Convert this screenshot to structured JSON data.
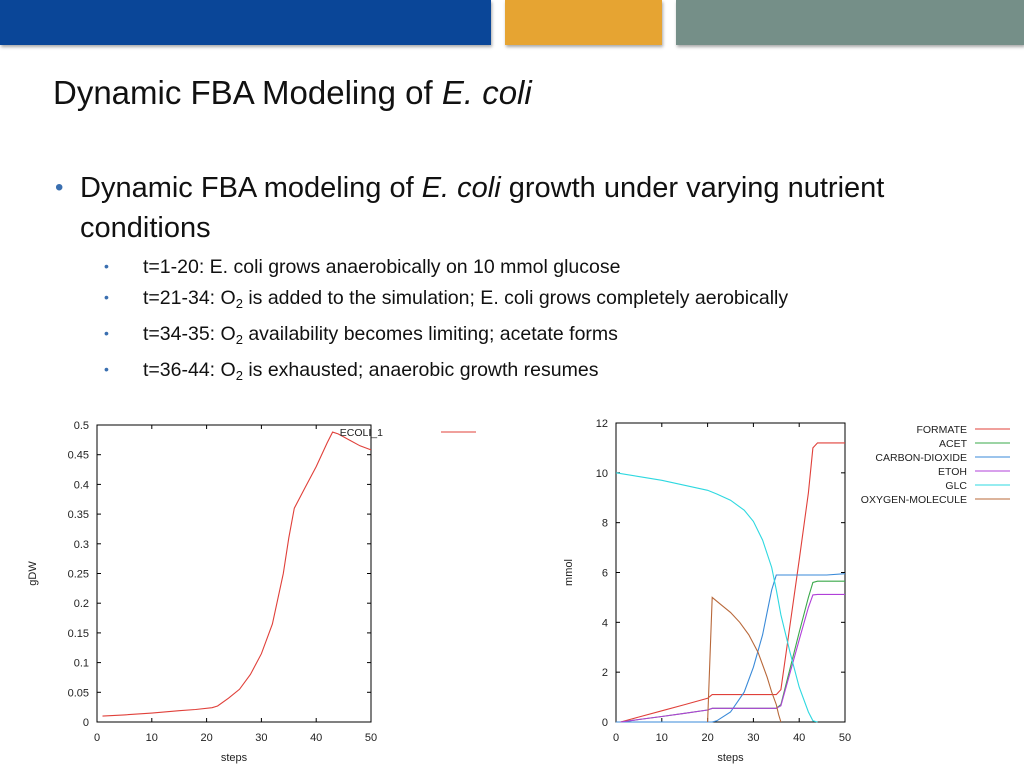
{
  "slide": {
    "title_plain": "Dynamic FBA Modeling of ",
    "title_italic": "E. coli",
    "bullet_main": {
      "part1": "Dynamic FBA modeling of ",
      "italic": "E. coli",
      "part2": " growth under varying nutrient conditions"
    },
    "sub_bullets": [
      {
        "text": "t=1-20: E. coli grows anaerobically on 10 mmol glucose"
      },
      {
        "pre": "t=21-34: O",
        "sub": "2",
        "post": " is added to the simulation; E. coli grows completely aerobically"
      },
      {
        "pre": "t=34-35: O",
        "sub": "2",
        "post": " availability becomes limiting; acetate forms"
      },
      {
        "pre": "t=36-44: O",
        "sub": "2",
        "post": " is exhausted; anaerobic growth resumes"
      }
    ],
    "colors": {
      "blue_bar": "#0a4698",
      "orange_bar": "#e6a432",
      "gray_bar": "#758f88",
      "bullet": "#3a6fb0"
    }
  },
  "chart_data": [
    {
      "type": "line",
      "xlabel": "steps",
      "ylabel": "gDW",
      "xlim": [
        0,
        50
      ],
      "ylim": [
        0,
        0.5
      ],
      "xticks": [
        "0",
        "10",
        "20",
        "30",
        "40",
        "50"
      ],
      "yticks": [
        "0",
        "0.05",
        "0.1",
        "0.15",
        "0.2",
        "0.25",
        "0.3",
        "0.35",
        "0.4",
        "0.45",
        "0.5"
      ],
      "legend_position": "top-right outside plot",
      "series": [
        {
          "name": "ECOLI_1",
          "color": "#e0403a",
          "x": [
            1,
            5,
            10,
            15,
            18,
            21,
            22,
            24,
            26,
            28,
            30,
            32,
            34,
            35,
            36,
            38,
            40,
            42,
            43,
            44,
            46,
            48,
            50
          ],
          "y": [
            0.01,
            0.012,
            0.015,
            0.019,
            0.021,
            0.024,
            0.027,
            0.04,
            0.055,
            0.08,
            0.115,
            0.165,
            0.25,
            0.31,
            0.36,
            0.395,
            0.43,
            0.47,
            0.488,
            0.485,
            0.475,
            0.465,
            0.458
          ]
        }
      ]
    },
    {
      "type": "line",
      "xlabel": "steps",
      "ylabel": "mmol",
      "xlim": [
        0,
        50
      ],
      "ylim": [
        0,
        12
      ],
      "xticks": [
        "0",
        "10",
        "20",
        "30",
        "40",
        "50"
      ],
      "yticks": [
        "0",
        "2",
        "4",
        "6",
        "8",
        "10",
        "12"
      ],
      "legend_position": "top-right outside plot",
      "series": [
        {
          "name": "FORMATE",
          "color": "#e0403a",
          "x": [
            1,
            5,
            10,
            15,
            20,
            21,
            25,
            30,
            35,
            36,
            40,
            42,
            43,
            44,
            46,
            50
          ],
          "y": [
            0,
            0.2,
            0.45,
            0.7,
            0.95,
            1.1,
            1.1,
            1.1,
            1.1,
            1.3,
            6.5,
            9.2,
            11.0,
            11.2,
            11.2,
            11.2
          ]
        },
        {
          "name": "ACET",
          "color": "#3aa84a",
          "x": [
            1,
            5,
            10,
            15,
            20,
            21,
            25,
            30,
            35,
            36,
            40,
            42,
            43,
            44,
            46,
            50
          ],
          "y": [
            0,
            0.1,
            0.22,
            0.35,
            0.48,
            0.55,
            0.55,
            0.55,
            0.55,
            0.7,
            3.6,
            5.0,
            5.6,
            5.65,
            5.65,
            5.65
          ]
        },
        {
          "name": "CARBON-DIOXIDE",
          "color": "#3a8ad8",
          "x": [
            0,
            20,
            21,
            22,
            25,
            28,
            30,
            32,
            33,
            34,
            35,
            36,
            40,
            42,
            44,
            46,
            50
          ],
          "y": [
            0,
            0,
            0,
            0.05,
            0.4,
            1.2,
            2.2,
            3.5,
            4.4,
            5.3,
            5.9,
            5.9,
            5.9,
            5.9,
            5.9,
            5.9,
            5.95
          ]
        },
        {
          "name": "ETOH",
          "color": "#b040d8",
          "x": [
            1,
            5,
            10,
            15,
            20,
            21,
            25,
            30,
            35,
            36,
            40,
            42,
            43,
            44,
            46,
            50
          ],
          "y": [
            0,
            0.1,
            0.22,
            0.35,
            0.48,
            0.55,
            0.55,
            0.55,
            0.55,
            0.65,
            3.3,
            4.6,
            5.1,
            5.12,
            5.12,
            5.12
          ]
        },
        {
          "name": "GLC",
          "color": "#2ed8e0",
          "x": [
            0,
            5,
            10,
            15,
            20,
            22,
            25,
            28,
            30,
            32,
            34,
            35,
            36,
            38,
            40,
            42,
            43,
            44
          ],
          "y": [
            10.0,
            9.85,
            9.7,
            9.5,
            9.3,
            9.15,
            8.9,
            8.5,
            8.05,
            7.3,
            6.2,
            5.3,
            4.3,
            2.8,
            1.4,
            0.4,
            0.05,
            0
          ]
        },
        {
          "name": "OXYGEN-MOLECULE",
          "color": "#b8683a",
          "x": [
            20,
            21,
            23,
            25,
            27,
            29,
            31,
            33,
            34,
            35,
            35.5,
            36
          ],
          "y": [
            0,
            5.0,
            4.7,
            4.4,
            4.0,
            3.5,
            2.8,
            1.8,
            1.2,
            0.7,
            0.3,
            0
          ]
        }
      ]
    }
  ]
}
